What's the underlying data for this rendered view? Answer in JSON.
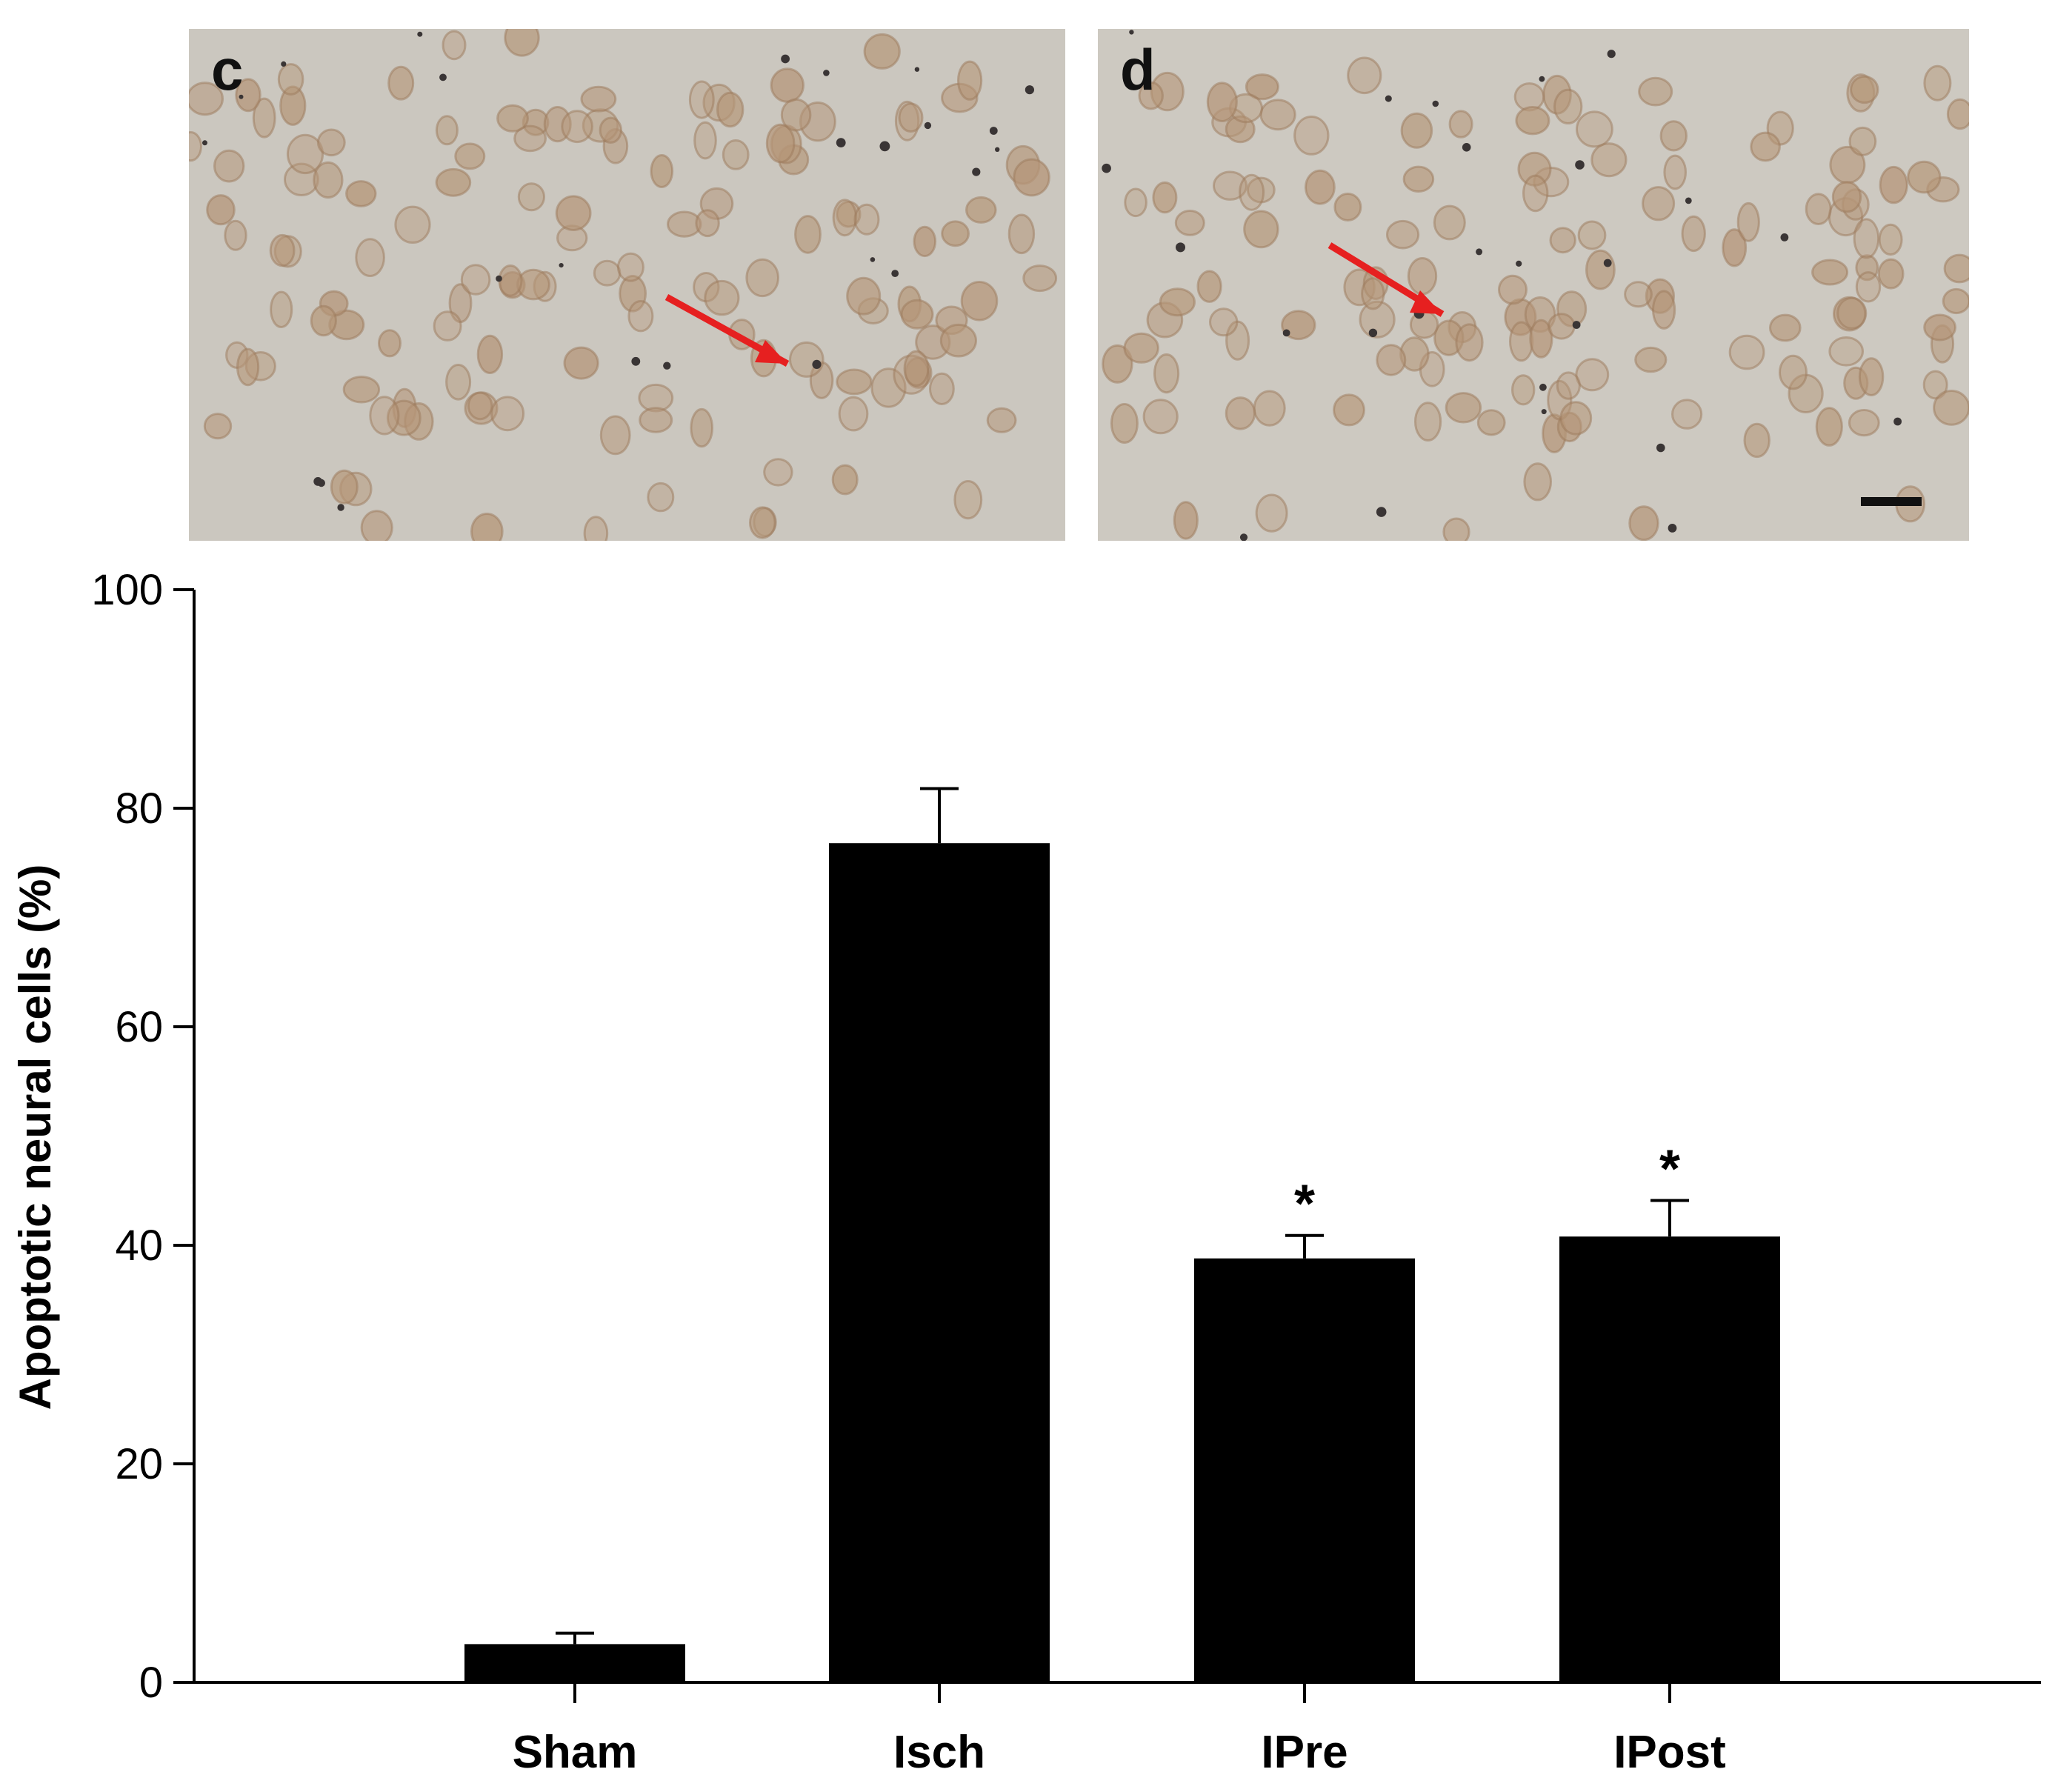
{
  "micrographs": {
    "panel_c_label": "c",
    "panel_d_label": "d"
  },
  "colors": {
    "bar": "#000000",
    "arrow": "#e62020",
    "tissue": "#c9c5bd",
    "nucleus": "#b59678"
  },
  "chart_data": {
    "type": "bar",
    "title": "",
    "xlabel": "",
    "ylabel": "Apoptotic neural cells (%)",
    "ylim": [
      0,
      100
    ],
    "yticks": [
      0,
      20,
      40,
      60,
      80,
      100
    ],
    "categories": [
      "Sham",
      "Isch",
      "IPre",
      "IPost"
    ],
    "values": [
      3.5,
      76.8,
      38.8,
      40.8
    ],
    "errors": [
      1.0,
      5.0,
      2.1,
      3.3
    ],
    "annotations": [
      "",
      "",
      "*",
      "*"
    ],
    "grid": false,
    "legend": "none"
  }
}
